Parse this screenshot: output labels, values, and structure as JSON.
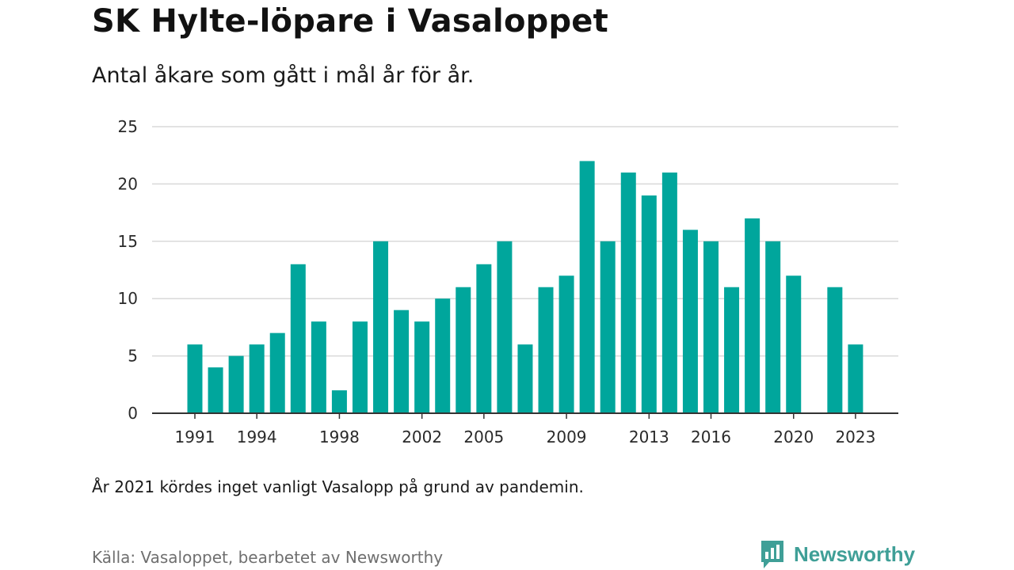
{
  "title": "SK Hylte-löpare i Vasaloppet",
  "subtitle": "Antal åkare som gått i mål år för år.",
  "note": "År 2021 kördes inget vanligt Vasalopp på grund av pandemin.",
  "source": "Källa: Vasaloppet, bearbetet av Newsworthy",
  "logo": {
    "text": "Newsworthy",
    "color": "#3f9f97",
    "icon": "chart-speech-bubble-icon"
  },
  "chart_data": {
    "type": "bar",
    "x": [
      1991,
      1992,
      1993,
      1994,
      1995,
      1996,
      1997,
      1998,
      1999,
      2000,
      2001,
      2002,
      2003,
      2004,
      2005,
      2006,
      2007,
      2008,
      2009,
      2010,
      2011,
      2012,
      2013,
      2014,
      2015,
      2016,
      2017,
      2018,
      2019,
      2020,
      2021,
      2022,
      2023
    ],
    "values": [
      6,
      4,
      5,
      6,
      7,
      13,
      8,
      2,
      8,
      15,
      9,
      8,
      10,
      11,
      13,
      15,
      6,
      11,
      12,
      22,
      15,
      21,
      19,
      21,
      16,
      15,
      11,
      17,
      15,
      12,
      null,
      11,
      6
    ],
    "x_ticks": [
      "1991",
      "1994",
      "1998",
      "2002",
      "2005",
      "2009",
      "2013",
      "2016",
      "2020",
      "2023"
    ],
    "y_ticks": [
      "0",
      "5",
      "10",
      "15",
      "20",
      "25"
    ],
    "ylim": [
      0,
      25
    ],
    "xlabel": "",
    "ylabel": "",
    "grid": true,
    "legend": "none",
    "bar_color": "#00a69c",
    "grid_color": "#d9d9d9",
    "axis_color": "#333333"
  }
}
